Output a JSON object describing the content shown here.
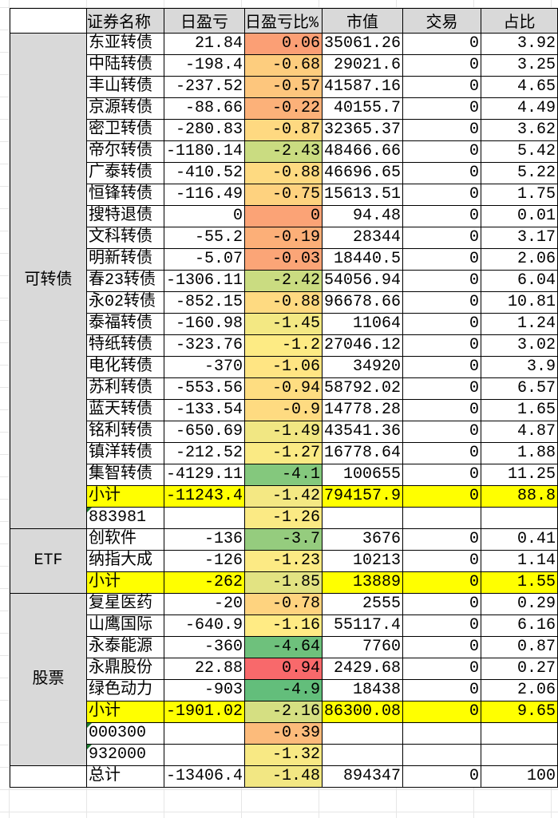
{
  "header": {
    "category": "",
    "name": "证券名称",
    "pnl": "日盈亏",
    "pnl_pct": "日盈亏比%",
    "value": "市值",
    "trade": "交易",
    "share": "占比"
  },
  "colors": {
    "header_bg": "#d9d9d9",
    "subtotal_bg": "#ffff00",
    "scale_min": "#63be7b",
    "scale_mid": "#ffeb84",
    "scale_max": "#f8696b"
  },
  "groups": [
    {
      "category": "可转债",
      "rows": [
        [
          "东亚转债",
          "21.84",
          "0.06",
          "35061.26",
          "0",
          "3.92"
        ],
        [
          "中陆转债",
          "-198.4",
          "-0.68",
          "29021.6",
          "0",
          "3.25"
        ],
        [
          "丰山转债",
          "-237.52",
          "-0.57",
          "41587.16",
          "0",
          "4.65"
        ],
        [
          "京源转债",
          "-88.66",
          "-0.22",
          "40155.7",
          "0",
          "4.49"
        ],
        [
          "密卫转债",
          "-280.83",
          "-0.87",
          "32365.37",
          "0",
          "3.62"
        ],
        [
          "帝尔转债",
          "-1180.14",
          "-2.43",
          "48466.66",
          "0",
          "5.42"
        ],
        [
          "广泰转债",
          "-410.52",
          "-0.88",
          "46696.65",
          "0",
          "5.22"
        ],
        [
          "恒锋转债",
          "-116.49",
          "-0.75",
          "15613.51",
          "0",
          "1.75"
        ],
        [
          "搜特退债",
          "0",
          "0",
          "94.48",
          "0",
          "0.01"
        ],
        [
          "文科转债",
          "-55.2",
          "-0.19",
          "28344",
          "0",
          "3.17"
        ],
        [
          "明新转债",
          "-5.07",
          "-0.03",
          "18440.5",
          "0",
          "2.06"
        ],
        [
          "春23转债",
          "-1306.11",
          "-2.42",
          "54056.94",
          "0",
          "6.04"
        ],
        [
          "永02转债",
          "-852.15",
          "-0.88",
          "96678.66",
          "0",
          "10.81"
        ],
        [
          "泰福转债",
          "-160.98",
          "-1.45",
          "11064",
          "0",
          "1.24"
        ],
        [
          "特纸转债",
          "-323.76",
          "-1.2",
          "27046.12",
          "0",
          "3.02"
        ],
        [
          "电化转债",
          "-370",
          "-1.06",
          "34920",
          "0",
          "3.9"
        ],
        [
          "苏利转债",
          "-553.56",
          "-0.94",
          "58792.02",
          "0",
          "6.57"
        ],
        [
          "蓝天转债",
          "-133.54",
          "-0.9",
          "14778.28",
          "0",
          "1.65"
        ],
        [
          "铭利转债",
          "-650.69",
          "-1.49",
          "43541.36",
          "0",
          "4.87"
        ],
        [
          "镇洋转债",
          "-212.52",
          "-1.27",
          "16778.64",
          "0",
          "1.88"
        ],
        [
          "集智转债",
          "-4129.11",
          "-4.1",
          "100655",
          "0",
          "11.25"
        ]
      ],
      "subtotal": [
        "小计",
        "-11243.4",
        "-1.42",
        "794157.9",
        "0",
        "88.8"
      ],
      "index_rows": [
        [
          "883981",
          "-1.26"
        ]
      ]
    },
    {
      "category": "ETF",
      "rows": [
        [
          "创软件",
          "-136",
          "-3.7",
          "3676",
          "0",
          "0.41"
        ],
        [
          "纳指大成",
          "-126",
          "-1.23",
          "10213",
          "0",
          "1.14"
        ]
      ],
      "subtotal": [
        "小计",
        "-262",
        "-1.85",
        "13889",
        "0",
        "1.55"
      ],
      "index_rows": []
    },
    {
      "category": "股票",
      "rows": [
        [
          "复星医药",
          "-20",
          "-0.78",
          "2555",
          "0",
          "0.29"
        ],
        [
          "山鹰国际",
          "-640.9",
          "-1.16",
          "55117.4",
          "0",
          "6.16"
        ],
        [
          "永泰能源",
          "-360",
          "-4.64",
          "7760",
          "0",
          "0.87"
        ],
        [
          "永鼎股份",
          "22.88",
          "0.94",
          "2429.68",
          "0",
          "0.27"
        ],
        [
          "绿色动力",
          "-903",
          "-4.9",
          "18438",
          "0",
          "2.06"
        ]
      ],
      "subtotal": [
        "小计",
        "-1901.02",
        "-2.16",
        "86300.08",
        "0",
        "9.65"
      ],
      "index_rows": [
        [
          "000300",
          "-0.39"
        ],
        [
          "932000",
          "-1.32"
        ]
      ]
    }
  ],
  "total": [
    "总计",
    "-13406.4",
    "-1.48",
    "894347",
    "0",
    "100"
  ]
}
